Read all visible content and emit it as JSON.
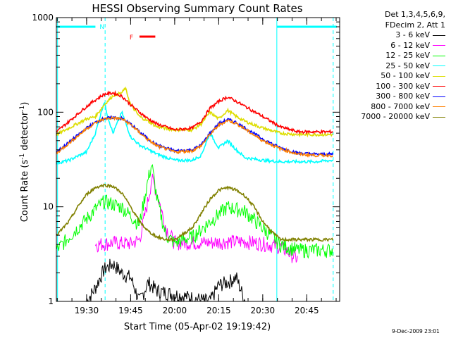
{
  "chart_data": {
    "type": "line",
    "title": "HESSI Observing Summary Count Rates",
    "xlabel": "Start Time (05-Apr-02 19:19:42)",
    "ylabel": "Count Rate (s^-1 detector^-1)",
    "ylabel_parts": {
      "main": "Count Rate (s",
      "sup1": "-1",
      "mid": " detector",
      "sup2": "-1",
      "end": ")"
    },
    "yscale": "log",
    "ylim": [
      1,
      1000
    ],
    "xlim": [
      19.3283,
      20.9367
    ],
    "x_tick_labels": [
      "19:30",
      "19:45",
      "20:00",
      "20:15",
      "20:30",
      "20:45"
    ],
    "x_tick_values": [
      19.5,
      19.75,
      20.0,
      20.25,
      20.5,
      20.75
    ],
    "y_tick_labels": [
      "1",
      "10",
      "100",
      "1000"
    ],
    "y_tick_values": [
      1,
      10,
      100,
      1000
    ],
    "legend_header": [
      "Det 1,3,4,5,6,9,",
      "FDecim 2, Att 1"
    ],
    "legend_position": "outside-right",
    "series": [
      {
        "name": "3 - 6 keV",
        "color": "#000000",
        "x": [
          19.5,
          19.55,
          19.6,
          19.65,
          19.7,
          19.75,
          19.8,
          19.85,
          19.9,
          20.2,
          20.25,
          20.3,
          20.35,
          20.4
        ],
        "values": [
          1,
          1.4,
          2.2,
          2.5,
          2.0,
          1.8,
          1,
          1.6,
          1.3,
          1,
          1.5,
          1.6,
          1.8,
          1
        ]
      },
      {
        "name": "6 - 12 keV",
        "color": "#ff00ff",
        "x": [
          19.55,
          19.65,
          19.75,
          19.8,
          19.85,
          19.87,
          19.9,
          19.95,
          20.0,
          20.2,
          20.3,
          20.4,
          20.5,
          20.6,
          20.7
        ],
        "values": [
          4.0,
          4.2,
          4.1,
          4.5,
          12,
          20,
          14,
          6,
          4.2,
          4.2,
          4.3,
          4.3,
          4.1,
          3.8,
          2.8
        ]
      },
      {
        "name": "12 - 25 keV",
        "color": "#00ff00",
        "x": [
          19.33,
          19.4,
          19.5,
          19.55,
          19.6,
          19.7,
          19.8,
          19.85,
          19.87,
          19.9,
          19.95,
          20.0,
          20.1,
          20.2,
          20.3,
          20.4,
          20.5,
          20.6,
          20.7,
          20.8,
          20.9
        ],
        "values": [
          3.5,
          4.8,
          7.5,
          9.5,
          11.5,
          10,
          6.5,
          20,
          28,
          12,
          5,
          4.2,
          4.8,
          7,
          10,
          9,
          6,
          4,
          3.5,
          3.5,
          3.5
        ]
      },
      {
        "name": "25 - 50 keV",
        "color": "#00ffff",
        "x": [
          19.33,
          19.4,
          19.5,
          19.55,
          19.6,
          19.62,
          19.65,
          19.7,
          19.75,
          19.8,
          19.9,
          20.0,
          20.1,
          20.15,
          20.2,
          20.25,
          20.3,
          20.35,
          20.4,
          20.45,
          20.5,
          20.6,
          20.7,
          20.8,
          20.9
        ],
        "values": [
          29,
          31,
          38,
          60,
          130,
          90,
          60,
          100,
          55,
          45,
          36,
          31,
          31,
          35,
          60,
          42,
          50,
          40,
          33,
          32,
          31,
          30,
          30,
          30,
          31
        ]
      },
      {
        "name": "50 - 100 keV",
        "color": "#dddd00",
        "x": [
          19.33,
          19.4,
          19.5,
          19.55,
          19.6,
          19.65,
          19.7,
          19.72,
          19.75,
          19.8,
          19.85,
          19.9,
          20.0,
          20.1,
          20.15,
          20.2,
          20.25,
          20.3,
          20.35,
          20.4,
          20.5,
          20.6,
          20.7,
          20.8,
          20.9
        ],
        "values": [
          58,
          68,
          85,
          90,
          120,
          150,
          160,
          180,
          120,
          90,
          80,
          70,
          65,
          65,
          75,
          100,
          85,
          105,
          90,
          80,
          68,
          60,
          58,
          58,
          58
        ]
      },
      {
        "name": "100 - 300 keV",
        "color": "#ff0000",
        "x": [
          19.33,
          19.4,
          19.5,
          19.55,
          19.6,
          19.65,
          19.7,
          19.75,
          19.8,
          19.85,
          19.9,
          20.0,
          20.1,
          20.15,
          20.2,
          20.25,
          20.3,
          20.35,
          20.4,
          20.5,
          20.6,
          20.7,
          20.8,
          20.9
        ],
        "values": [
          62,
          80,
          115,
          135,
          155,
          160,
          148,
          120,
          100,
          85,
          75,
          65,
          68,
          80,
          110,
          130,
          145,
          130,
          115,
          90,
          70,
          62,
          62,
          62
        ]
      },
      {
        "name": "300 - 800 keV",
        "color": "#0000ff",
        "x": [
          19.33,
          19.4,
          19.5,
          19.55,
          19.6,
          19.65,
          19.7,
          19.75,
          19.8,
          19.85,
          19.9,
          20.0,
          20.1,
          20.15,
          20.2,
          20.25,
          20.3,
          20.35,
          20.4,
          20.5,
          20.6,
          20.7,
          20.8,
          20.9
        ],
        "values": [
          38,
          48,
          68,
          78,
          86,
          88,
          86,
          75,
          62,
          52,
          45,
          39,
          40,
          45,
          60,
          75,
          84,
          78,
          68,
          52,
          42,
          37,
          36,
          36
        ]
      },
      {
        "name": "800 - 7000 keV",
        "color": "#ff8000",
        "x": [
          19.33,
          19.4,
          19.5,
          19.55,
          19.6,
          19.65,
          19.7,
          19.75,
          19.8,
          19.85,
          19.9,
          20.0,
          20.1,
          20.15,
          20.2,
          20.25,
          20.3,
          20.35,
          20.4,
          20.5,
          20.6,
          20.7,
          20.8,
          20.9
        ],
        "values": [
          37,
          47,
          67,
          77,
          85,
          87,
          85,
          74,
          61,
          51,
          44,
          38,
          39,
          44,
          58,
          73,
          82,
          76,
          66,
          50,
          41,
          36,
          35,
          35
        ]
      },
      {
        "name": "7000 - 20000 keV",
        "color": "#808000",
        "x": [
          19.33,
          19.4,
          19.45,
          19.5,
          19.55,
          19.6,
          19.65,
          19.7,
          19.75,
          19.8,
          19.85,
          19.9,
          19.95,
          20.0,
          20.1,
          20.15,
          20.2,
          20.25,
          20.3,
          20.35,
          20.4,
          20.45,
          20.5,
          20.55,
          20.6,
          20.7,
          20.8,
          20.9
        ],
        "values": [
          5,
          7,
          10,
          13.5,
          16,
          17,
          16.5,
          14,
          10,
          7,
          5.5,
          4.8,
          4.5,
          4.5,
          6,
          8.5,
          12,
          15,
          16,
          15,
          13,
          10,
          7,
          5.5,
          4.5,
          4.5,
          4.5,
          4.5
        ]
      }
    ],
    "annotations": [
      {
        "label": "N",
        "color": "#00ffff",
        "x_start": 19.33,
        "x_end": 20.92,
        "y": 800,
        "gap": [
          19.55,
          20.58
        ]
      },
      {
        "label": "F",
        "color": "#ff0000",
        "x_start": 19.8,
        "x_end": 19.89,
        "y": 630
      }
    ],
    "vertical_markers": [
      {
        "x": 19.335,
        "style": "solid"
      },
      {
        "x": 19.605,
        "style": "dashed"
      },
      {
        "x": 20.58,
        "style": "solid"
      },
      {
        "x": 20.9,
        "style": "dashed"
      }
    ],
    "timestamp": "9-Dec-2009 23:01"
  }
}
